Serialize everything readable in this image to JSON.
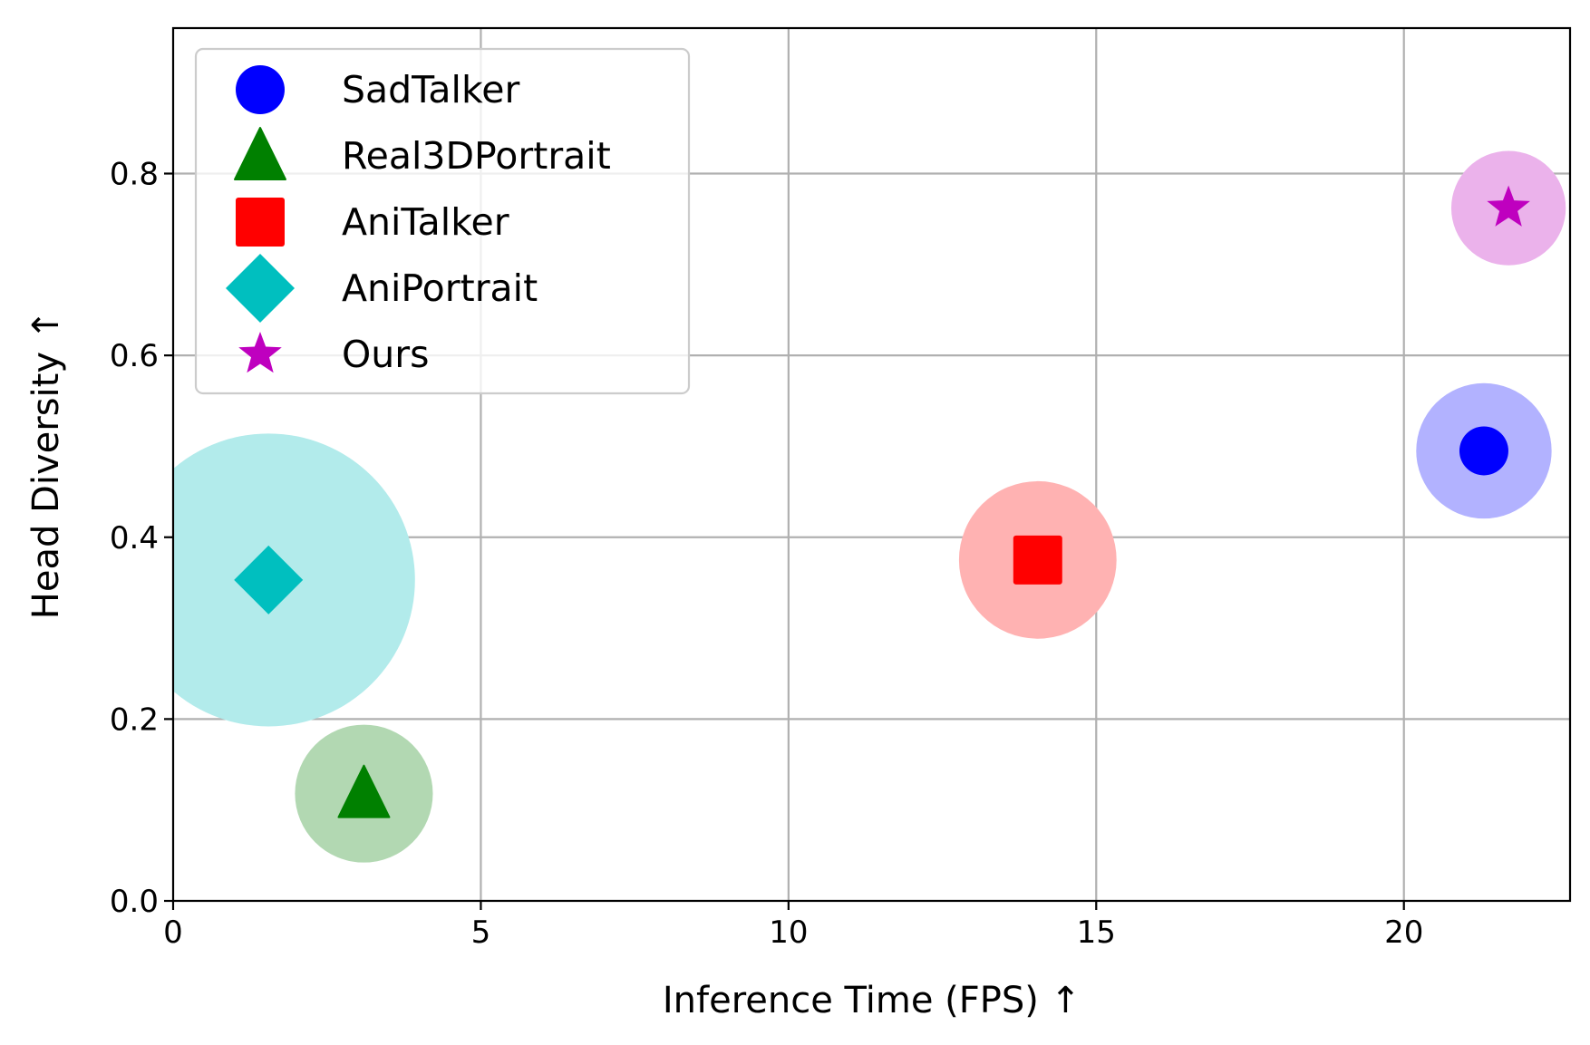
{
  "chart_data": {
    "type": "scatter",
    "title": "",
    "xlabel": "Inference Time (FPS) ↑",
    "ylabel": "Head Diversity ↑",
    "xlim": [
      0,
      22.7
    ],
    "ylim": [
      0,
      0.96
    ],
    "xticks": [
      0,
      5,
      10,
      15,
      20
    ],
    "xtick_labels": [
      "0",
      "5",
      "10",
      "15",
      "20"
    ],
    "yticks": [
      0.0,
      0.2,
      0.4,
      0.6,
      0.8
    ],
    "ytick_labels": [
      "0.0",
      "0.2",
      "0.4",
      "0.6",
      "0.8"
    ],
    "grid": true,
    "legend_position": "top-left",
    "series": [
      {
        "name": "SadTalker",
        "marker": "circle",
        "color": "#0000ff",
        "halo_color": "#b2b2ff",
        "x": 21.3,
        "y": 0.495,
        "halo_radius": 1.1
      },
      {
        "name": "Real3DPortrait",
        "marker": "triangle",
        "color": "#008000",
        "halo_color": "#b2d8b2",
        "x": 3.1,
        "y": 0.118,
        "halo_radius": 1.12
      },
      {
        "name": "AniTalker",
        "marker": "square",
        "color": "#ff0000",
        "halo_color": "#ffb2b2",
        "x": 14.05,
        "y": 0.375,
        "halo_radius": 1.28
      },
      {
        "name": "AniPortrait",
        "marker": "diamond",
        "color": "#00bfbf",
        "halo_color": "#b2ebeb",
        "x": 1.55,
        "y": 0.353,
        "halo_radius": 2.38
      },
      {
        "name": "Ours",
        "marker": "star",
        "color": "#bf00bf",
        "halo_color": "#ebb2eb",
        "x": 21.7,
        "y": 0.762,
        "halo_radius": 0.93
      }
    ]
  }
}
